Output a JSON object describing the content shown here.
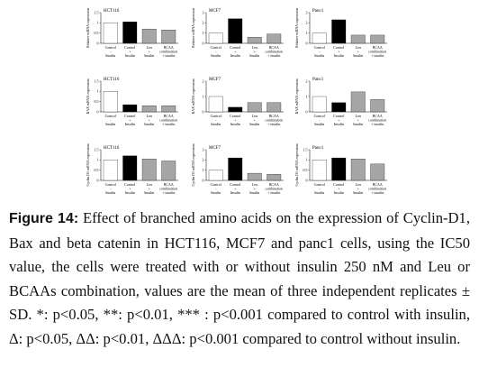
{
  "chart_data": [
    {
      "type": "bar",
      "title": "HCT116",
      "ylabel": "Relative mRNA expression",
      "categories": [
        [
          "Control",
          "-",
          "Insulin"
        ],
        [
          "Control",
          "+",
          "Insulin"
        ],
        [
          "Leu",
          "+",
          "Insulin"
        ],
        [
          "BCAA",
          "combination",
          "+ insulin"
        ]
      ],
      "values": [
        1,
        1.05,
        0.7,
        0.65
      ],
      "colors": [
        "#ffffff",
        "#000000",
        "#a6a6a6",
        "#a6a6a6"
      ],
      "ylim": [
        0,
        1.5
      ],
      "yticks": [
        0,
        0.5,
        1,
        1.5
      ]
    },
    {
      "type": "bar",
      "title": "MCF7",
      "ylabel": "Relative mRNA expression",
      "categories": [
        [
          "Control",
          "-",
          "Insulin"
        ],
        [
          "Control",
          "+",
          "Insulin"
        ],
        [
          "Leu",
          "+",
          "Insulin"
        ],
        [
          "BCAA",
          "combination",
          "+ insulin"
        ]
      ],
      "values": [
        1,
        2.4,
        0.6,
        0.9
      ],
      "colors": [
        "#ffffff",
        "#000000",
        "#a6a6a6",
        "#a6a6a6"
      ],
      "ylim": [
        0,
        3
      ],
      "yticks": [
        0,
        1,
        2,
        3
      ]
    },
    {
      "type": "bar",
      "title": "Panc1",
      "ylabel": "Relative mRNA expression",
      "categories": [
        [
          "Control",
          "-",
          "Insulin"
        ],
        [
          "Control",
          "+",
          "Insulin"
        ],
        [
          "Leu",
          "+",
          "Insulin"
        ],
        [
          "BCAA",
          "combination",
          "+ insulin"
        ]
      ],
      "values": [
        1,
        2.3,
        0.8,
        0.8
      ],
      "colors": [
        "#ffffff",
        "#000000",
        "#a6a6a6",
        "#a6a6a6"
      ],
      "ylim": [
        0,
        3
      ],
      "yticks": [
        0,
        1,
        2,
        3
      ]
    },
    {
      "type": "bar",
      "title": "HCT116",
      "ylabel": "BAX mRNA expression",
      "categories": [
        [
          "Control",
          "-",
          "Insulin"
        ],
        [
          "Control",
          "+",
          "Insulin"
        ],
        [
          "Leu",
          "+",
          "Insulin"
        ],
        [
          "BCAA",
          "combination",
          "+ insulin"
        ]
      ],
      "values": [
        1,
        0.35,
        0.3,
        0.3
      ],
      "colors": [
        "#ffffff",
        "#000000",
        "#a6a6a6",
        "#a6a6a6"
      ],
      "ylim": [
        0,
        1.5
      ],
      "yticks": [
        0,
        0.5,
        1,
        1.5
      ]
    },
    {
      "type": "bar",
      "title": "MCF7",
      "ylabel": "BAX mRNA expression",
      "categories": [
        [
          "Control",
          "-",
          "Insulin"
        ],
        [
          "Control",
          "+",
          "Insulin"
        ],
        [
          "Leu",
          "+",
          "Insulin"
        ],
        [
          "BCAA",
          "combination",
          "+ insulin"
        ]
      ],
      "values": [
        1,
        0.3,
        0.6,
        0.6
      ],
      "colors": [
        "#ffffff",
        "#000000",
        "#a6a6a6",
        "#a6a6a6"
      ],
      "ylim": [
        0,
        2
      ],
      "yticks": [
        0,
        1,
        2
      ]
    },
    {
      "type": "bar",
      "title": "Panc1",
      "ylabel": "BAX mRNA expression",
      "categories": [
        [
          "Control",
          "-",
          "Insulin"
        ],
        [
          "Control",
          "+",
          "Insulin"
        ],
        [
          "Leu",
          "+",
          "Insulin"
        ],
        [
          "BCAA",
          "combination",
          "+ insulin"
        ]
      ],
      "values": [
        1,
        0.6,
        1.3,
        0.8
      ],
      "colors": [
        "#ffffff",
        "#000000",
        "#a6a6a6",
        "#a6a6a6"
      ],
      "ylim": [
        0,
        2
      ],
      "yticks": [
        0,
        1,
        2
      ]
    },
    {
      "type": "bar",
      "title": "HCT116",
      "ylabel": "Cyclin D1 mRNA expression",
      "categories": [
        [
          "Control",
          "-",
          "Insulin"
        ],
        [
          "Control",
          "+",
          "Insulin"
        ],
        [
          "Leu",
          "+",
          "Insulin"
        ],
        [
          "BCAA",
          "combination",
          "+ insulin"
        ]
      ],
      "values": [
        1,
        1.2,
        1.05,
        0.95
      ],
      "colors": [
        "#ffffff",
        "#000000",
        "#a6a6a6",
        "#a6a6a6"
      ],
      "ylim": [
        0,
        1.5
      ],
      "yticks": [
        0,
        0.5,
        1,
        1.5
      ]
    },
    {
      "type": "bar",
      "title": "MCF7",
      "ylabel": "Cyclin D1 mRNA expression",
      "categories": [
        [
          "Control",
          "-",
          "Insulin"
        ],
        [
          "Control",
          "+",
          "Insulin"
        ],
        [
          "Leu",
          "+",
          "Insulin"
        ],
        [
          "BCAA",
          "combination",
          "+ insulin"
        ]
      ],
      "values": [
        1,
        2.2,
        0.7,
        0.6
      ],
      "colors": [
        "#ffffff",
        "#000000",
        "#a6a6a6",
        "#a6a6a6"
      ],
      "ylim": [
        0,
        3
      ],
      "yticks": [
        0,
        1,
        2,
        3
      ]
    },
    {
      "type": "bar",
      "title": "Panc1",
      "ylabel": "Cyclin D1 mRNA expression",
      "categories": [
        [
          "Control",
          "-",
          "Insulin"
        ],
        [
          "Control",
          "+",
          "Insulin"
        ],
        [
          "Leu",
          "+",
          "Insulin"
        ],
        [
          "BCAA",
          "combination",
          "+ insulin"
        ]
      ],
      "values": [
        1,
        1.1,
        1.05,
        0.8
      ],
      "colors": [
        "#ffffff",
        "#000000",
        "#a6a6a6",
        "#a6a6a6"
      ],
      "ylim": [
        0,
        1.5
      ],
      "yticks": [
        0,
        0.5,
        1,
        1.5
      ]
    }
  ],
  "caption": {
    "label": "Figure 14:",
    "text": "Effect of branched amino acids on the expression of Cyclin-D1, Bax and beta catenin in HCT116, MCF7 and panc1 cells, using the IC50 value, the cells were treated with or without insulin 250 nM and Leu or BCAAs combination, values are the mean of three independent replicates ± SD. *: p<0.05, **: p<0.01, *** : p<0.001 compared to control with insulin, Δ: p<0.05, ΔΔ: p<0.01, ΔΔΔ: p<0.001 compared to control without insulin."
  }
}
